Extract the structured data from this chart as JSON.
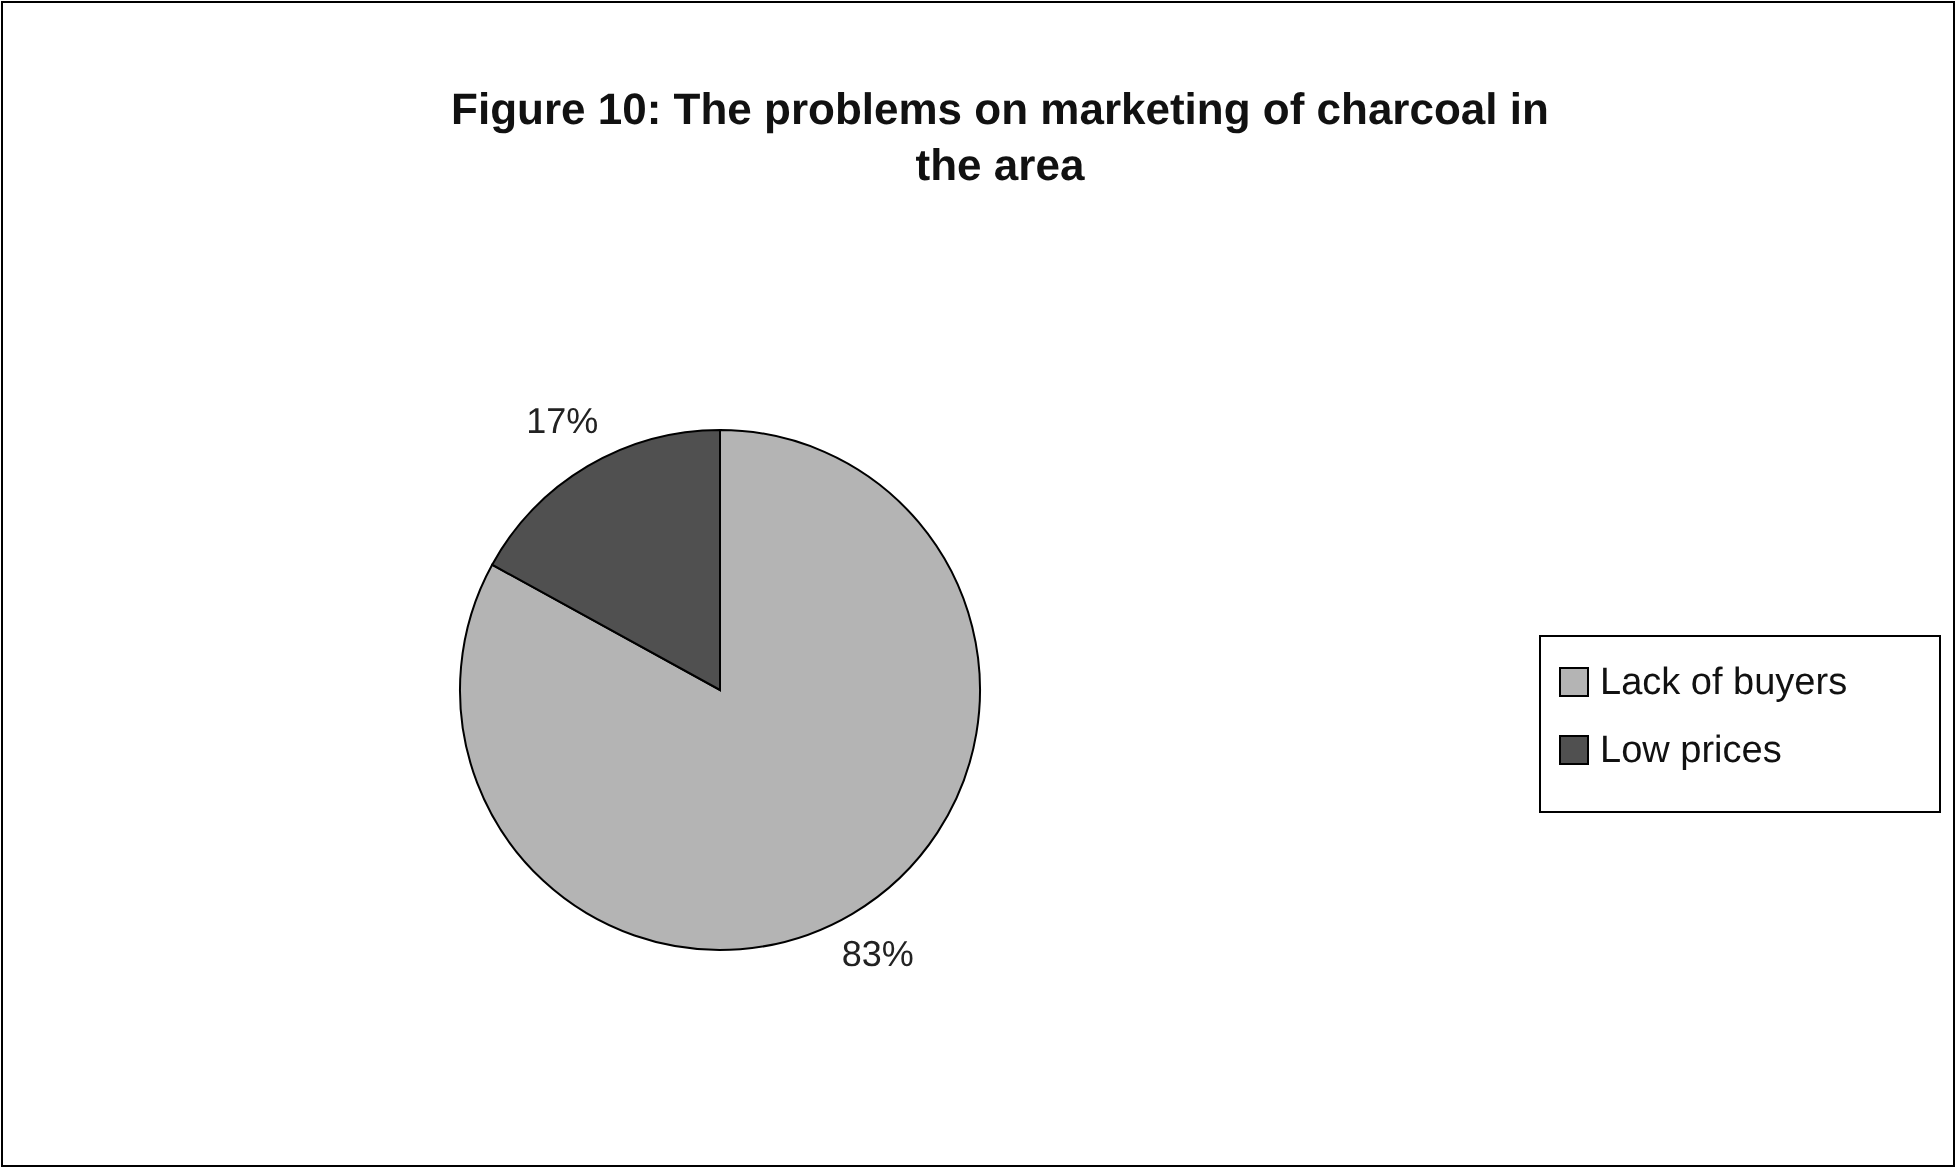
{
  "chart_data": {
    "type": "pie",
    "title": "Figure 10: The problems on marketing of charcoal in the area",
    "categories": [
      "Lack of buyers",
      "Low prices"
    ],
    "values": [
      83,
      17
    ],
    "colors": [
      "#b4b4b4",
      "#505050"
    ],
    "value_labels": [
      "83%",
      "17%"
    ],
    "legend": "right"
  }
}
